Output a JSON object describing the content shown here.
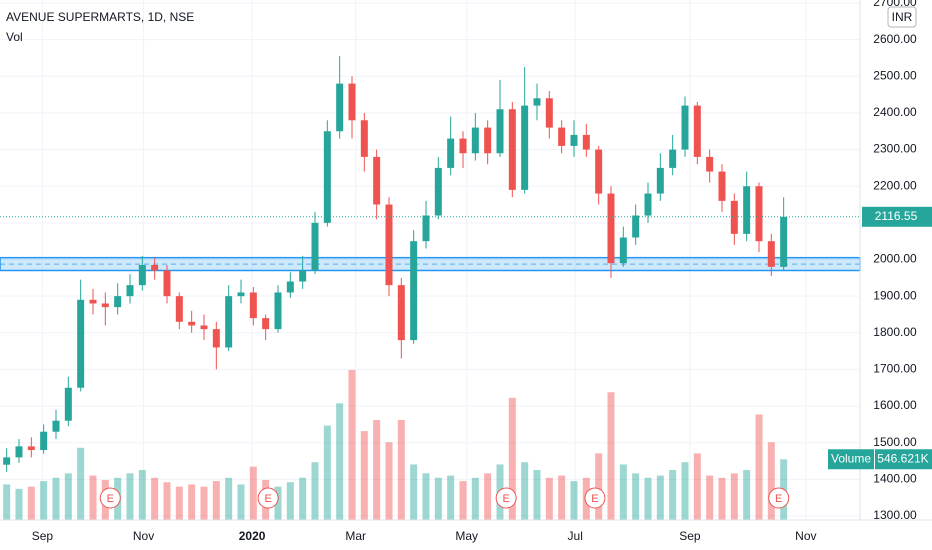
{
  "chart_data": {
    "type": "candlestick",
    "title": "AVENUE SUPERMARTS, 1D, NSE",
    "volume_title": "Vol",
    "currency": "INR",
    "open": [
      1440,
      1460,
      1490,
      1480,
      1530,
      1560,
      1650,
      1890,
      1880,
      1870,
      1900,
      1930,
      1985,
      1970,
      1900,
      1830,
      1820,
      1810,
      1760,
      1900,
      1910,
      1840,
      1810,
      1910,
      1940,
      1970,
      2100,
      2350,
      2480,
      2380,
      2280,
      2150,
      1930,
      1780,
      2050,
      2120,
      2250,
      2330,
      2290,
      2360,
      2290,
      2410,
      2190,
      2420,
      2440,
      2360,
      2310,
      2340,
      2300,
      2180,
      1990,
      2060,
      2120,
      2180,
      2250,
      2300,
      2420,
      2280,
      2240,
      2160,
      2070,
      2200,
      2050,
      1980
    ],
    "high": [
      1485,
      1510,
      1515,
      1550,
      1590,
      1680,
      1945,
      1920,
      1910,
      1935,
      1960,
      2010,
      2005,
      1985,
      1910,
      1860,
      1850,
      1830,
      1930,
      1945,
      1925,
      1850,
      1930,
      1965,
      2010,
      2130,
      2380,
      2555,
      2500,
      2400,
      2300,
      2170,
      1950,
      2080,
      2160,
      2280,
      2390,
      2350,
      2400,
      2380,
      2490,
      2430,
      2525,
      2480,
      2460,
      2380,
      2380,
      2370,
      2310,
      2200,
      2090,
      2150,
      2210,
      2290,
      2340,
      2445,
      2430,
      2300,
      2260,
      2180,
      2240,
      2210,
      2070,
      2170
    ],
    "low": [
      1420,
      1445,
      1460,
      1470,
      1510,
      1545,
      1640,
      1850,
      1820,
      1850,
      1880,
      1915,
      1945,
      1880,
      1810,
      1800,
      1780,
      1700,
      1750,
      1880,
      1820,
      1780,
      1800,
      1895,
      1920,
      1960,
      2090,
      2330,
      2330,
      2240,
      2110,
      1900,
      1730,
      1770,
      2030,
      2110,
      2230,
      2250,
      2270,
      2260,
      2280,
      2170,
      2180,
      2380,
      2330,
      2290,
      2280,
      2280,
      2150,
      1950,
      1980,
      2040,
      2100,
      2160,
      2230,
      2280,
      2260,
      2210,
      2130,
      2040,
      2050,
      2020,
      1955,
      1970
    ],
    "close": [
      1460,
      1490,
      1480,
      1530,
      1560,
      1650,
      1890,
      1880,
      1870,
      1900,
      1930,
      1985,
      1970,
      1900,
      1830,
      1820,
      1810,
      1760,
      1900,
      1910,
      1840,
      1810,
      1910,
      1940,
      1970,
      2100,
      2350,
      2480,
      2380,
      2280,
      2150,
      1930,
      1780,
      2050,
      2120,
      2250,
      2330,
      2290,
      2360,
      2290,
      2410,
      2190,
      2420,
      2440,
      2360,
      2310,
      2340,
      2300,
      2180,
      1990,
      2060,
      2120,
      2180,
      2250,
      2300,
      2420,
      2280,
      2240,
      2160,
      2070,
      2200,
      2050,
      1980,
      2116.55
    ],
    "volume": [
      320,
      280,
      300,
      350,
      380,
      420,
      650,
      400,
      360,
      380,
      420,
      450,
      380,
      340,
      300,
      320,
      300,
      350,
      380,
      320,
      480,
      360,
      300,
      340,
      380,
      520,
      850,
      1050,
      1350,
      800,
      900,
      700,
      900,
      500,
      420,
      380,
      400,
      350,
      380,
      420,
      500,
      1100,
      520,
      450,
      380,
      400,
      350,
      380,
      600,
      1150,
      500,
      420,
      380,
      400,
      450,
      520,
      600,
      400,
      380,
      420,
      450,
      950,
      700,
      546.621
    ],
    "volume_label": "Volume",
    "last_volume_label": "546.621K",
    "up_color": "#26a69a",
    "down_color": "#ef5350",
    "zone": [
      1970,
      2005
    ],
    "zone_color": "#2196f3",
    "earnings": {
      "x": [
        8.4,
        21.2,
        40.5,
        47.7,
        62.6
      ],
      "labels": [
        "E",
        "E",
        "E",
        "E",
        "E"
      ]
    },
    "xlim": [
      -0.54,
      69.19
    ],
    "xticks": [
      {
        "value": 2.9,
        "label": "Sep"
      },
      {
        "value": 11.1,
        "label": "Nov"
      },
      {
        "value": 19.9,
        "label": "2020"
      },
      {
        "value": 28.3,
        "label": "Mar"
      },
      {
        "value": 37.3,
        "label": "May"
      },
      {
        "value": 46.1,
        "label": "Jul"
      },
      {
        "value": 55.4,
        "label": "Sep"
      },
      {
        "value": 64.8,
        "label": "Nov"
      }
    ],
    "ylim": [
      1300,
      2700
    ],
    "yticks": [
      {
        "value": 1300,
        "label": "1300.00"
      },
      {
        "value": 1400,
        "label": "1400.00"
      },
      {
        "value": 1500,
        "label": "1500.00"
      },
      {
        "value": 1600,
        "label": "1600.00"
      },
      {
        "value": 1700,
        "label": "1700.00"
      },
      {
        "value": 1800,
        "label": "1800.00"
      },
      {
        "value": 1900,
        "label": "1900.00"
      },
      {
        "value": 2000,
        "label": "2000.00"
      },
      {
        "value": 2100,
        "label": "2100.00"
      },
      {
        "value": 2200,
        "label": "2200.00"
      },
      {
        "value": 2300,
        "label": "2300.00"
      },
      {
        "value": 2400,
        "label": "2400.00"
      },
      {
        "value": 2500,
        "label": "2500.00"
      },
      {
        "value": 2600,
        "label": "2600.00"
      },
      {
        "value": 2700,
        "label": "2700.00"
      }
    ],
    "grid": true
  }
}
